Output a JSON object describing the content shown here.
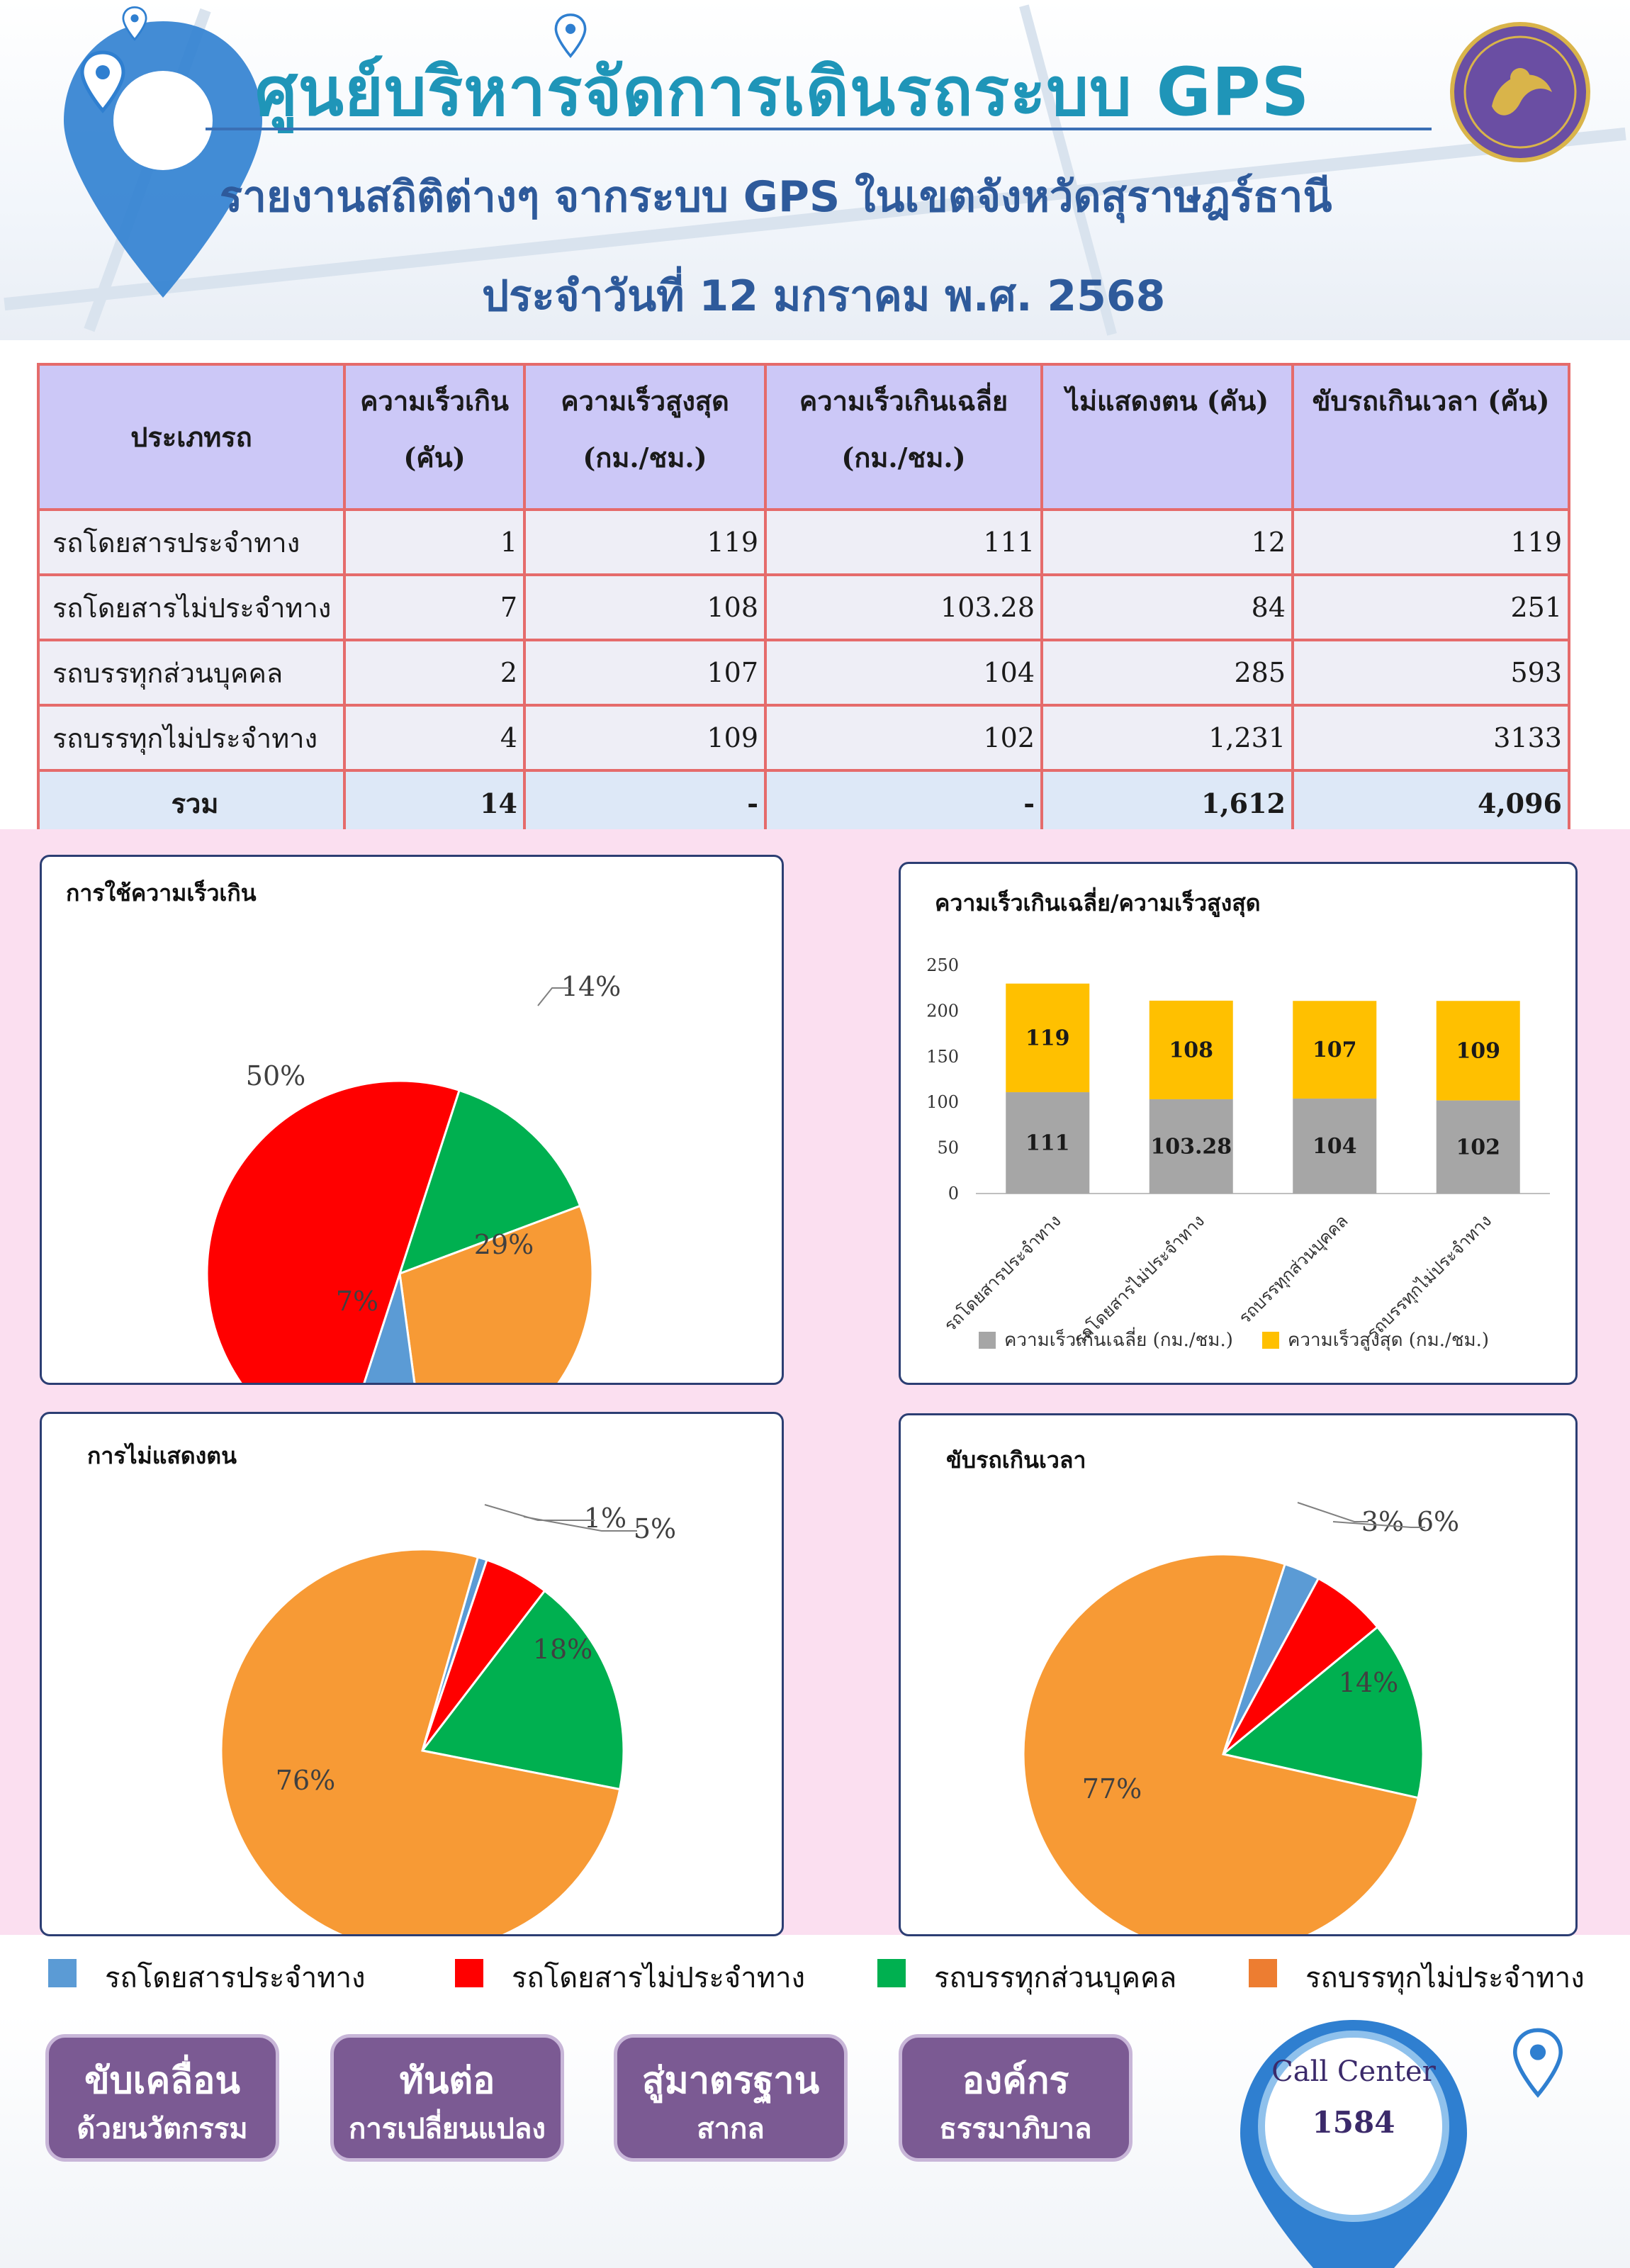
{
  "header": {
    "title": "ศูนย์บริหารจัดการเดินรถระบบ GPS",
    "subtitle": "รายงานสถิติต่างๆ จากระบบ GPS ในเขตจังหวัดสุราษฎร์ธานี",
    "date_line": "ประจำวันที่ 12 มกราคม พ.ศ. 2568"
  },
  "table": {
    "headers": [
      "ประเภทรถ",
      "ความเร็วเกิน\n(คัน)",
      "ความเร็วสูงสุด\n(กม./ชม.)",
      "ความเร็วเกินเฉลี่ย\n(กม./ชม.)",
      "ไม่แสดงตน (คัน)",
      "ขับรถเกินเวลา (คัน)"
    ],
    "rows": [
      [
        "รถโดยสารประจำทาง",
        "1",
        "119",
        "111",
        "12",
        "119"
      ],
      [
        "รถโดยสารไม่ประจำทาง",
        "7",
        "108",
        "103.28",
        "84",
        "251"
      ],
      [
        "รถบรรทุกส่วนบุคคล",
        "2",
        "107",
        "104",
        "285",
        "593"
      ],
      [
        "รถบรรทุกไม่ประจำทาง",
        "4",
        "109",
        "102",
        "1,231",
        "3133"
      ]
    ],
    "total": [
      "รวม",
      "14",
      "-",
      "-",
      "1,612",
      "4,096"
    ]
  },
  "colors": {
    "bus_fixed": "#5b9bd5",
    "bus_nonfixed": "#ff0000",
    "truck_private": "#00b050",
    "truck_nonfixed": "#f79a35",
    "bar_avg": "#a6a6a6",
    "bar_max": "#ffc000",
    "panel_border": "#2c3e73",
    "pink_bg": "#fbdff0"
  },
  "chart_data": [
    {
      "type": "pie",
      "title": "การใช้ความเร็วเกิน",
      "categories": [
        "รถโดยสารประจำทาง",
        "รถโดยสารไม่ประจำทาง",
        "รถบรรทุกส่วนบุคคล",
        "รถบรรทุกไม่ประจำทาง"
      ],
      "values": [
        1,
        7,
        2,
        4
      ],
      "labels": [
        "7%",
        "50%",
        "14%",
        "29%"
      ]
    },
    {
      "type": "bar",
      "stacked": true,
      "title": "ความเร็วเกินเฉลี่ย/ความเร็วสูงสุด",
      "categories": [
        "รถโดยสารประจำทาง",
        "รถโดยสารไม่ประจำทาง",
        "รถบรรทุกส่วนบุคคล",
        "รถบรรทุกไม่ประจำทาง"
      ],
      "series": [
        {
          "name": "ความเร็วเกินเฉลี่ย (กม./ชม.)",
          "values": [
            111,
            103.28,
            104,
            102
          ]
        },
        {
          "name": "ความเร็วสูงสุด (กม./ชม.)",
          "values": [
            119,
            108,
            107,
            109
          ]
        }
      ],
      "yticks": [
        "0",
        "50",
        "100",
        "150",
        "200",
        "250"
      ],
      "ylim": [
        0,
        250
      ],
      "legend": "bottom"
    },
    {
      "type": "pie",
      "title": "การไม่แสดงตน",
      "categories": [
        "รถโดยสารประจำทาง",
        "รถโดยสารไม่ประจำทาง",
        "รถบรรทุกส่วนบุคคล",
        "รถบรรทุกไม่ประจำทาง"
      ],
      "values": [
        12,
        84,
        285,
        1231
      ],
      "labels": [
        "1%",
        "5%",
        "18%",
        "76%"
      ]
    },
    {
      "type": "pie",
      "title": "ขับรถเกินเวลา",
      "categories": [
        "รถโดยสารประจำทาง",
        "รถโดยสารไม่ประจำทาง",
        "รถบรรทุกส่วนบุคคล",
        "รถบรรทุกไม่ประจำทาง"
      ],
      "values": [
        119,
        251,
        593,
        3133
      ],
      "labels": [
        "3%",
        "6%",
        "14%",
        "77%"
      ]
    }
  ],
  "legend": {
    "items": [
      "รถโดยสารประจำทาง",
      "รถโดยสารไม่ประจำทาง",
      "รถบรรทุกส่วนบุคคล",
      "รถบรรทุกไม่ประจำทาง"
    ]
  },
  "footer": {
    "buttons": [
      {
        "line1": "ขับเคลื่อน",
        "line2": "ด้วยนวัตกรรม"
      },
      {
        "line1": "ทันต่อ",
        "line2": "การเปลี่ยนแปลง"
      },
      {
        "line1": "สู่มาตรฐาน",
        "line2": "สากล"
      },
      {
        "line1": "องค์กร",
        "line2": "ธรรมาภิบาล"
      }
    ],
    "call_center_label": "Call Center",
    "call_center_number": "1584"
  }
}
